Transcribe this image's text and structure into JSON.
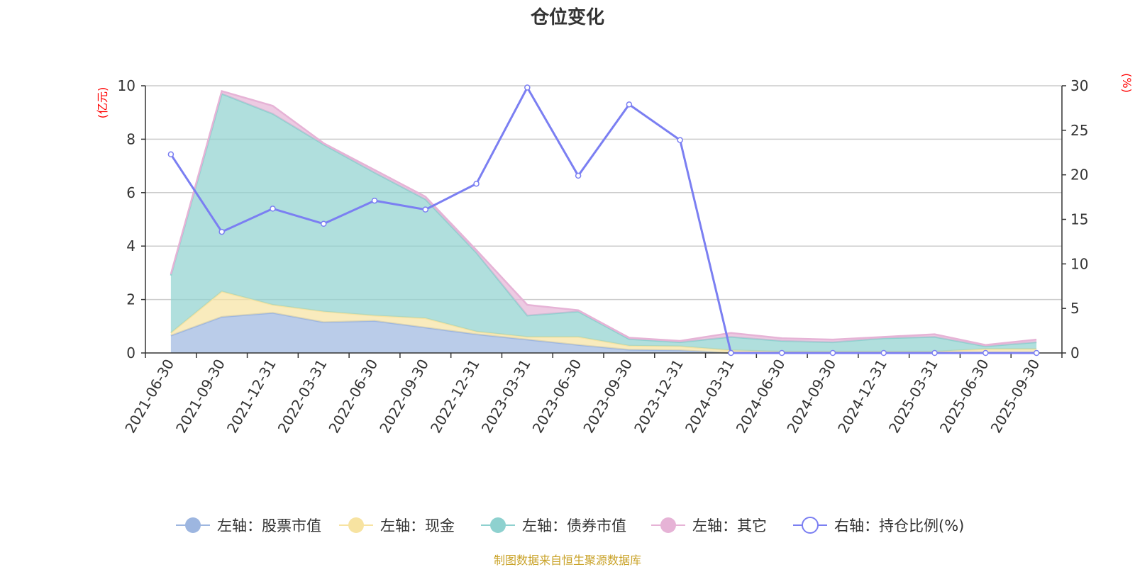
{
  "chart_data": {
    "type": "area",
    "title": "仓位变化",
    "source": "制图数据来自恒生聚源数据库",
    "left_axis": {
      "unit_label": "(亿元)",
      "ylim": [
        0,
        10
      ],
      "ticks": [
        "0",
        "2",
        "4",
        "6",
        "8",
        "10"
      ]
    },
    "right_axis": {
      "unit_label": "(%)",
      "ylim": [
        0,
        30
      ],
      "ticks": [
        "0",
        "5",
        "10",
        "15",
        "20",
        "25",
        "30"
      ]
    },
    "categories": [
      "2021-06-30",
      "2021-09-30",
      "2021-12-31",
      "2022-03-31",
      "2022-06-30",
      "2022-09-30",
      "2022-12-31",
      "2023-03-31",
      "2023-06-30",
      "2023-09-30",
      "2023-12-31",
      "2024-03-31",
      "2024-06-30",
      "2024-09-30",
      "2024-12-31",
      "2025-03-31",
      "2025-06-30",
      "2025-09-30"
    ],
    "series": [
      {
        "name": "左轴：股票市值",
        "axis": "left",
        "stacked": true,
        "color": "#9db6e0",
        "values": [
          0.65,
          1.35,
          1.5,
          1.15,
          1.2,
          0.95,
          0.7,
          0.5,
          0.3,
          0.12,
          0.1,
          0,
          0,
          0,
          0,
          0,
          0,
          0
        ]
      },
      {
        "name": "左轴：现金",
        "axis": "left",
        "stacked": true,
        "color": "#f7e3a1",
        "values": [
          0.1,
          0.95,
          0.3,
          0.4,
          0.2,
          0.35,
          0.1,
          0.1,
          0.3,
          0.15,
          0.15,
          0.1,
          0.05,
          0.05,
          0.05,
          0.05,
          0.15,
          0.15
        ]
      },
      {
        "name": "左轴：债券市值",
        "axis": "left",
        "stacked": true,
        "color": "#8ed1cf",
        "values": [
          2.15,
          7.4,
          7.15,
          6.25,
          5.35,
          4.45,
          2.95,
          0.8,
          0.95,
          0.25,
          0.15,
          0.5,
          0.4,
          0.35,
          0.5,
          0.55,
          0.1,
          0.25
        ]
      },
      {
        "name": "左轴：其它",
        "axis": "left",
        "stacked": true,
        "color": "#e6b3d6",
        "values": [
          0.05,
          0.1,
          0.3,
          0.05,
          0.1,
          0.1,
          0.1,
          0.4,
          0.05,
          0.05,
          0.05,
          0.15,
          0.1,
          0.1,
          0.05,
          0.1,
          0.05,
          0.1
        ]
      },
      {
        "name": "右轴：持仓比例(%)",
        "axis": "right",
        "stacked": false,
        "color": "#7b7ff2",
        "values": [
          22.3,
          13.6,
          16.2,
          14.5,
          17.1,
          16.1,
          19,
          29.8,
          19.9,
          27.9,
          23.9,
          0,
          0,
          0,
          0,
          0,
          0,
          0
        ]
      }
    ]
  }
}
